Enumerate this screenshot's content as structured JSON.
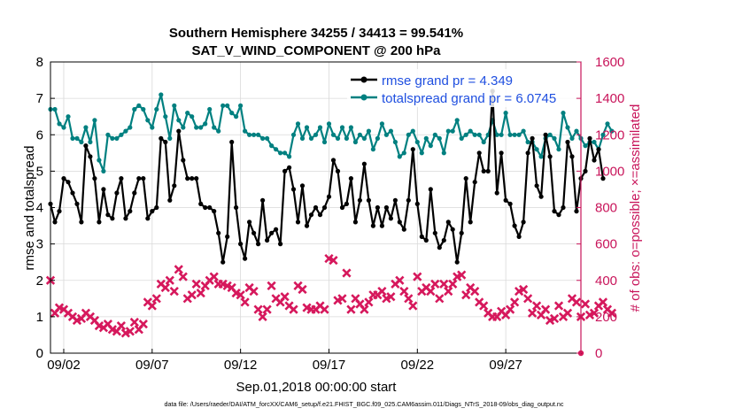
{
  "chart_data": {
    "type": "line",
    "title_line1": "Southern Hemisphere 34255 / 34413 = 99.541%",
    "title_line2": "SAT_V_WIND_COMPONENT @ 200 hPa",
    "xlabel": "Sep.01,2018 00:00:00 start",
    "ylabel_left": "rmse and totalspread",
    "ylabel_right": "# of obs: o=possible; ×=assimilated",
    "footer": "data file: /Users/raeder/DAI/ATM_forcXX/CAM6_setup/f.e21.FHIST_BGC.f09_025.CAM6assim.011/Diags_NTrS_2018-09/obs_diag_output.nc",
    "x_range_days": [
      0.5,
      30.5
    ],
    "ylim_left": [
      0,
      8
    ],
    "ylim_right": [
      0,
      1600
    ],
    "x_ticks": [
      {
        "day": 1.25,
        "label": "09/02"
      },
      {
        "day": 6.25,
        "label": "09/07"
      },
      {
        "day": 11.25,
        "label": "09/12"
      },
      {
        "day": 16.25,
        "label": "09/17"
      },
      {
        "day": 21.25,
        "label": "09/22"
      },
      {
        "day": 26.25,
        "label": "09/27"
      }
    ],
    "y_ticks_left": [
      "0",
      "1",
      "2",
      "3",
      "4",
      "5",
      "6",
      "7",
      "8"
    ],
    "y_ticks_right": [
      "0",
      "200",
      "400",
      "600",
      "800",
      "1000",
      "1200",
      "1400",
      "1600"
    ],
    "legend": [
      {
        "label": "rmse grand pr = 4.349",
        "color": "#000000"
      },
      {
        "label": "totalspread grand pr = 6.0745",
        "color": "#008080"
      }
    ],
    "colors": {
      "rmse": "#000000",
      "totalspread": "#008080",
      "obs": "#d6185c",
      "axis_right": "#c8145a",
      "legend_text": "#1f4fe0"
    },
    "series": [
      {
        "name": "rmse",
        "axis": "left",
        "step_days": 0.25,
        "start_day": 0.5,
        "values": [
          4.1,
          3.6,
          3.9,
          4.8,
          4.7,
          4.4,
          4.1,
          3.6,
          5.7,
          5.4,
          4.8,
          3.6,
          4.5,
          3.8,
          3.7,
          4.4,
          4.8,
          3.7,
          3.9,
          4.4,
          4.8,
          4.8,
          3.7,
          3.9,
          4.0,
          5.9,
          5.8,
          4.2,
          4.6,
          6.1,
          5.3,
          4.8,
          4.8,
          4.8,
          4.1,
          4.0,
          4.0,
          3.9,
          3.3,
          2.5,
          3.2,
          5.8,
          4.0,
          3.0,
          2.6,
          3.6,
          3.3,
          3.0,
          4.2,
          3.1,
          3.3,
          3.4,
          3.0,
          5.0,
          5.1,
          4.5,
          3.6,
          4.6,
          3.5,
          3.8,
          4.0,
          3.8,
          4.0,
          4.3,
          5.3,
          5.0,
          4.0,
          4.1,
          4.8,
          3.6,
          4.2,
          5.2,
          4.2,
          3.5,
          4.0,
          3.5,
          4.0,
          3.7,
          4.2,
          3.6,
          3.4,
          4.2,
          5.6,
          4.1,
          3.2,
          3.1,
          4.5,
          3.3,
          2.9,
          3.1,
          3.6,
          3.4,
          2.5,
          3.3,
          4.8,
          3.6,
          4.7,
          5.5,
          5.0,
          5.0,
          7.2,
          4.4,
          5.5,
          4.2,
          4.1,
          3.5,
          3.2,
          3.6,
          5.5,
          5.9,
          4.6,
          4.3,
          6.0,
          5.4,
          3.9,
          3.8,
          4.0,
          5.8,
          5.4,
          3.9,
          4.8,
          5.0,
          5.9,
          5.3,
          5.6,
          4.8
        ]
      },
      {
        "name": "totalspread",
        "axis": "left",
        "step_days": 0.25,
        "start_day": 0.5,
        "values": [
          6.7,
          6.7,
          6.3,
          6.2,
          6.5,
          5.9,
          5.9,
          5.8,
          6.2,
          5.8,
          6.4,
          5.3,
          5.0,
          6.0,
          5.9,
          5.9,
          6.0,
          6.1,
          6.2,
          6.7,
          6.8,
          6.7,
          6.4,
          6.2,
          6.7,
          7.1,
          6.5,
          5.9,
          6.8,
          6.4,
          6.2,
          6.6,
          6.5,
          6.2,
          6.2,
          6.3,
          6.7,
          6.2,
          6.1,
          6.8,
          6.8,
          6.6,
          6.5,
          6.8,
          6.1,
          6.0,
          6.0,
          6.0,
          5.9,
          5.9,
          5.7,
          5.6,
          5.5,
          5.5,
          5.4,
          6.0,
          6.3,
          5.9,
          6.2,
          5.9,
          6.0,
          6.2,
          5.8,
          6.3,
          6.0,
          5.9,
          6.2,
          5.9,
          6.2,
          5.8,
          6.0,
          5.9,
          6.1,
          5.6,
          5.9,
          6.3,
          6.0,
          6.1,
          5.8,
          5.4,
          5.5,
          6.0,
          6.1,
          5.8,
          5.5,
          5.9,
          5.7,
          6.0,
          5.9,
          5.5,
          6.1,
          6.1,
          6.4,
          5.9,
          6.0,
          6.1,
          6.0,
          6.0,
          5.8,
          6.0,
          6.4,
          6.0,
          6.0,
          6.6,
          6.0,
          6.0,
          6.0,
          6.1,
          5.8,
          5.8,
          5.6,
          5.4,
          5.9,
          6.0,
          5.9,
          5.6,
          6.6,
          6.2,
          5.9,
          6.1,
          5.9,
          5.7,
          5.8,
          5.8,
          5.6,
          6.0,
          6.3,
          6.1
        ]
      },
      {
        "name": "obs_count",
        "axis": "right",
        "step_days": 0.25,
        "start_day": 0.5,
        "values": [
          400,
          220,
          250,
          240,
          220,
          200,
          180,
          190,
          220,
          200,
          180,
          150,
          140,
          160,
          130,
          120,
          150,
          110,
          120,
          170,
          130,
          160,
          280,
          260,
          300,
          380,
          360,
          400,
          340,
          460,
          420,
          300,
          320,
          380,
          330,
          370,
          400,
          420,
          380,
          380,
          370,
          360,
          330,
          320,
          280,
          360,
          340,
          240,
          200,
          240,
          370,
          300,
          280,
          310,
          260,
          240,
          370,
          350,
          250,
          240,
          240,
          260,
          240,
          520,
          510,
          290,
          300,
          440,
          240,
          300,
          270,
          240,
          280,
          320,
          320,
          340,
          300,
          310,
          380,
          400,
          340,
          300,
          260,
          420,
          340,
          360,
          340,
          380,
          300,
          380,
          340,
          380,
          420,
          430,
          320,
          360,
          340,
          280,
          260,
          220,
          200,
          200,
          230,
          210,
          240,
          280,
          340,
          350,
          300,
          220,
          260,
          210,
          240,
          180,
          190,
          260,
          200,
          220,
          300,
          280,
          200,
          270,
          210,
          220,
          260,
          280,
          240,
          220
        ]
      }
    ]
  }
}
